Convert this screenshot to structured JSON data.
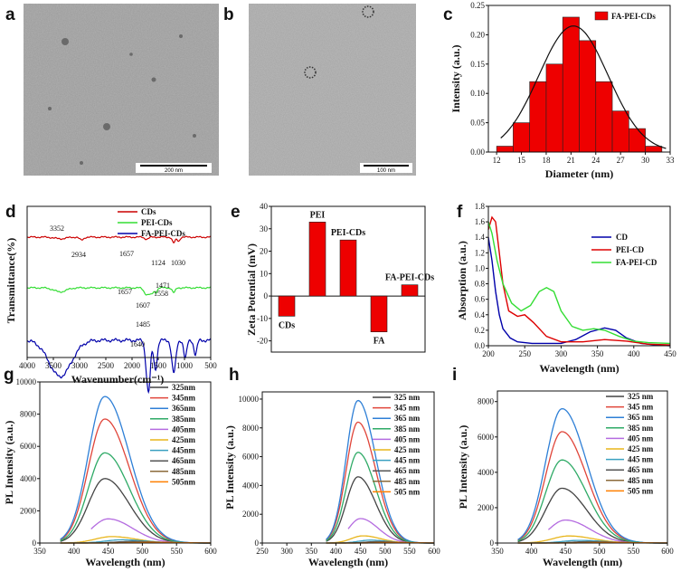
{
  "panel_labels": [
    "a",
    "b",
    "c",
    "d",
    "e",
    "f",
    "g",
    "h",
    "i"
  ],
  "tem": {
    "a": {
      "scale_bar": "200 nm"
    },
    "b": {
      "scale_bar": "100 nm"
    }
  },
  "chart_data": [
    {
      "id": "c",
      "type": "bar",
      "title": "",
      "xlabel": "Diameter (nm)",
      "ylabel": "Intensity (a.u.)",
      "legend": [
        "FA-PEI-CDs"
      ],
      "x": [
        13,
        15,
        17,
        19,
        21,
        23,
        25,
        27,
        29,
        31
      ],
      "values": [
        0.01,
        0.05,
        0.12,
        0.15,
        0.23,
        0.19,
        0.12,
        0.07,
        0.04,
        0.01
      ],
      "fit": {
        "type": "gaussian",
        "center": 21.3,
        "sigma": 4.2,
        "amplitude": 0.215
      },
      "xlim": [
        11,
        33
      ],
      "ylim": [
        0,
        0.25
      ],
      "xticks": [
        "12",
        "15",
        "18",
        "21",
        "24",
        "27",
        "30",
        "33"
      ],
      "yticks": [
        "0.00",
        "0.05",
        "0.10",
        "0.15",
        "0.20",
        "0.25"
      ],
      "colors": {
        "bar": "#ee0000",
        "fit": "#111111"
      }
    },
    {
      "id": "d",
      "type": "line",
      "xlabel": "Wavenumber(cm⁻¹)",
      "ylabel": "Transmittance(%)",
      "xlim": [
        4000,
        400
      ],
      "xticks": [
        "4000",
        "3500",
        "3000",
        "2500",
        "2000",
        "1500",
        "1000",
        "500"
      ],
      "series": [
        {
          "name": "CDs",
          "color": "#cc0000",
          "offset": 0.0,
          "dips": [
            [
              3352,
              0.1,
              110
            ],
            [
              2934,
              0.18,
              40
            ],
            [
              1657,
              0.12,
              40
            ],
            [
              1124,
              0.35,
              30
            ],
            [
              1030,
              0.25,
              25
            ]
          ]
        },
        {
          "name": "PEI-CDs",
          "color": "#33dd33",
          "offset": 1.0,
          "dips": [
            [
              3352,
              0.25,
              120
            ],
            [
              1657,
              0.4,
              50
            ],
            [
              1558,
              0.35,
              40
            ],
            [
              1471,
              0.25,
              25
            ],
            [
              1124,
              0.3,
              30
            ]
          ]
        },
        {
          "name": "FA-PEI-CDs",
          "color": "#0000aa",
          "offset": 2.0,
          "dips": [
            [
              3352,
              1.0,
              220
            ],
            [
              1640,
              0.9,
              40
            ],
            [
              1607,
              0.7,
              30
            ],
            [
              1485,
              0.8,
              35
            ],
            [
              1124,
              0.9,
              40
            ],
            [
              900,
              0.5,
              30
            ],
            [
              700,
              0.4,
              30
            ]
          ]
        }
      ],
      "annotations": [
        "3352",
        "2934",
        "1657",
        "1124",
        "1030",
        "1657",
        "1471",
        "1558",
        "1607",
        "1485",
        "1640"
      ]
    },
    {
      "id": "e",
      "type": "bar",
      "xlabel": "",
      "ylabel": "Zeta Potential (mV)",
      "categories": [
        "CDs",
        "PEI",
        "PEI-CDs",
        "FA",
        "FA-PEI-CDs"
      ],
      "values": [
        -9,
        33,
        25,
        -16,
        5
      ],
      "ylim": [
        -25,
        40
      ],
      "yticks": [
        "-20",
        "-10",
        "0",
        "10",
        "20",
        "30",
        "40"
      ],
      "colors": {
        "bar": "#ee0000"
      }
    },
    {
      "id": "f",
      "type": "line",
      "xlabel": "Wavelength (nm)",
      "ylabel": "Absorption (a.u.)",
      "xlim": [
        200,
        450
      ],
      "ylim": [
        0,
        1.8
      ],
      "xticks": [
        "200",
        "250",
        "300",
        "350",
        "400",
        "450"
      ],
      "yticks": [
        "0.0",
        "0.2",
        "0.4",
        "0.6",
        "0.8",
        "1.0",
        "1.2",
        "1.4",
        "1.6",
        "1.8"
      ],
      "series": [
        {
          "name": "CD",
          "color": "#0000aa",
          "points": [
            [
              200,
              1.4
            ],
            [
              205,
              1.1
            ],
            [
              210,
              0.7
            ],
            [
              215,
              0.4
            ],
            [
              220,
              0.22
            ],
            [
              230,
              0.1
            ],
            [
              240,
              0.05
            ],
            [
              260,
              0.03
            ],
            [
              280,
              0.03
            ],
            [
              300,
              0.03
            ],
            [
              320,
              0.08
            ],
            [
              340,
              0.18
            ],
            [
              360,
              0.23
            ],
            [
              375,
              0.2
            ],
            [
              390,
              0.1
            ],
            [
              410,
              0.03
            ],
            [
              430,
              0.01
            ],
            [
              450,
              0.0
            ]
          ]
        },
        {
          "name": "PEI-CD",
          "color": "#dd0000",
          "points": [
            [
              200,
              1.5
            ],
            [
              205,
              1.66
            ],
            [
              210,
              1.6
            ],
            [
              215,
              1.2
            ],
            [
              220,
              0.8
            ],
            [
              228,
              0.45
            ],
            [
              240,
              0.38
            ],
            [
              250,
              0.4
            ],
            [
              262,
              0.3
            ],
            [
              280,
              0.12
            ],
            [
              300,
              0.05
            ],
            [
              330,
              0.05
            ],
            [
              360,
              0.08
            ],
            [
              390,
              0.06
            ],
            [
              420,
              0.02
            ],
            [
              450,
              0.01
            ]
          ]
        },
        {
          "name": "FA-PEI-CD",
          "color": "#33dd33",
          "points": [
            [
              200,
              1.6
            ],
            [
              205,
              1.45
            ],
            [
              212,
              1.1
            ],
            [
              220,
              0.8
            ],
            [
              232,
              0.55
            ],
            [
              245,
              0.45
            ],
            [
              258,
              0.52
            ],
            [
              270,
              0.7
            ],
            [
              280,
              0.75
            ],
            [
              290,
              0.7
            ],
            [
              300,
              0.45
            ],
            [
              315,
              0.25
            ],
            [
              330,
              0.2
            ],
            [
              345,
              0.22
            ],
            [
              360,
              0.2
            ],
            [
              380,
              0.12
            ],
            [
              400,
              0.06
            ],
            [
              420,
              0.04
            ],
            [
              450,
              0.03
            ]
          ]
        }
      ]
    },
    {
      "id": "g",
      "type": "line",
      "xlabel": "Wavelength (nm)",
      "ylabel": "PL Intensity (a.u.)",
      "xlim": [
        350,
        600
      ],
      "ylim": [
        0,
        10000
      ],
      "xticks": [
        "350",
        "400",
        "450",
        "500",
        "550",
        "600"
      ],
      "yticks": [
        "0",
        "2000",
        "4000",
        "6000",
        "8000",
        "10000"
      ],
      "legend": [
        "325nm",
        "345nm",
        "365nm",
        "385nm",
        "405nm",
        "425nm",
        "445nm",
        "465nm",
        "485nm",
        "505nm"
      ],
      "peak_wavelengths": [
        445,
        445,
        445,
        445,
        450,
        455,
        470,
        485,
        500,
        520
      ],
      "peak_intensities": [
        4000,
        7700,
        9100,
        5600,
        1500,
        400,
        200,
        100,
        60,
        40
      ]
    },
    {
      "id": "h",
      "type": "line",
      "xlabel": "Wavelength (nm)",
      "ylabel": "PL Intensity (a.u.)",
      "xlim": [
        250,
        600
      ],
      "ylim": [
        0,
        10500
      ],
      "xticks": [
        "250",
        "300",
        "350",
        "400",
        "450",
        "500",
        "550",
        "600"
      ],
      "yticks": [
        "0",
        "2000",
        "4000",
        "6000",
        "8000",
        "10000"
      ],
      "legend": [
        "325 nm",
        "345 nm",
        "365 nm",
        "385 nm",
        "405 nm",
        "425 nm",
        "445 nm",
        "465 nm",
        "485 nm",
        "505 nm"
      ],
      "peak_wavelengths": [
        445,
        445,
        445,
        445,
        450,
        455,
        470,
        485,
        500,
        520
      ],
      "peak_intensities": [
        4600,
        8400,
        9900,
        6300,
        1700,
        500,
        200,
        100,
        60,
        40
      ]
    },
    {
      "id": "i",
      "type": "line",
      "xlabel": "Wavelength (nm)",
      "ylabel": "PL Intensity (a.u.)",
      "xlim": [
        350,
        600
      ],
      "ylim": [
        0,
        8600
      ],
      "xticks": [
        "350",
        "400",
        "450",
        "500",
        "550",
        "600"
      ],
      "yticks": [
        "0",
        "2000",
        "4000",
        "6000",
        "8000"
      ],
      "legend": [
        "325 nm",
        "345 nm",
        "365 nm",
        "385 nm",
        "405 nm",
        "425 nm",
        "445 nm",
        "465 nm",
        "485 nm",
        "505 nm"
      ],
      "peak_wavelengths": [
        445,
        445,
        445,
        445,
        450,
        455,
        470,
        485,
        500,
        520
      ],
      "peak_intensities": [
        3100,
        6300,
        7600,
        4700,
        1300,
        400,
        150,
        80,
        50,
        30
      ]
    }
  ],
  "pl_colors": [
    "#444444",
    "#e0453a",
    "#2e7fd6",
    "#2eaa66",
    "#b46be0",
    "#e8b51a",
    "#3aa0c0",
    "#555555",
    "#8b6a3a",
    "#ff7f00"
  ]
}
